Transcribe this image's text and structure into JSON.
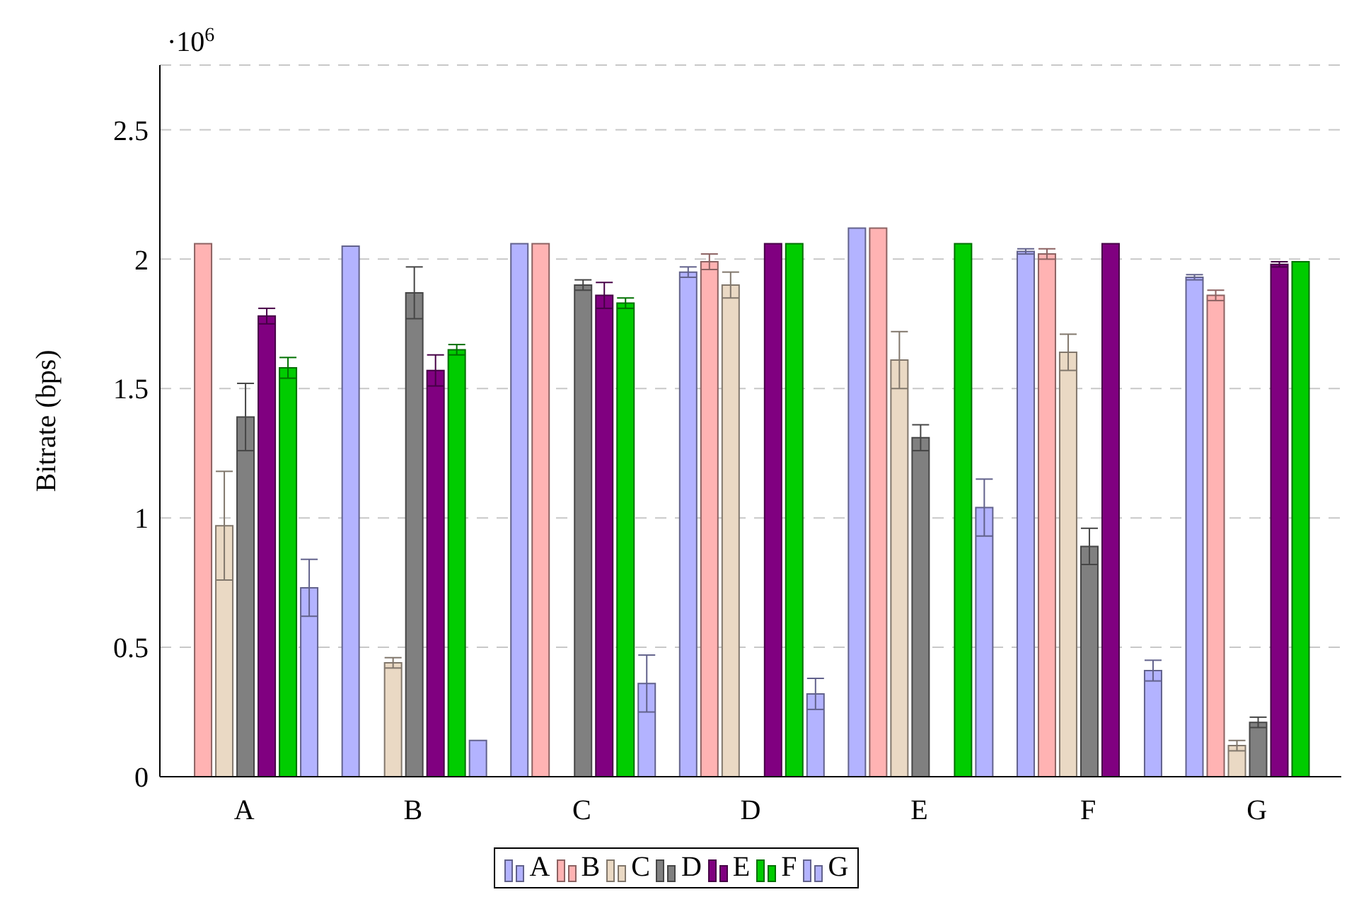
{
  "chart_data": {
    "type": "bar",
    "ylabel": "Bitrate (bps)",
    "annotations": [
      "·10$^{6}$"
    ],
    "categories": [
      "A",
      "B",
      "C",
      "D",
      "E",
      "F",
      "G"
    ],
    "ylim": [
      0,
      2.75
    ],
    "yticks": [
      0,
      0.5,
      1,
      1.5,
      2,
      2.5
    ],
    "grid": "y",
    "legend": "bottom",
    "series": [
      {
        "name": "A",
        "color": "#b3b3ff",
        "values": [
          0,
          2.05,
          2.06,
          1.95,
          2.12,
          2.03,
          1.93
        ],
        "errors": [
          null,
          null,
          null,
          0.02,
          null,
          0.01,
          0.01
        ]
      },
      {
        "name": "B",
        "color": "#ffb3b3",
        "values": [
          2.06,
          0,
          2.06,
          1.99,
          2.12,
          2.02,
          1.86
        ],
        "errors": [
          null,
          null,
          null,
          0.03,
          null,
          0.02,
          0.02
        ]
      },
      {
        "name": "C",
        "color": "#ead9c4",
        "values": [
          0.97,
          0.44,
          0,
          1.9,
          1.61,
          1.64,
          0.12
        ],
        "errors": [
          0.21,
          0.02,
          null,
          0.05,
          0.11,
          0.07,
          0.02
        ]
      },
      {
        "name": "D",
        "color": "#808080",
        "values": [
          1.39,
          1.87,
          1.9,
          0,
          1.31,
          0.89,
          0.21
        ],
        "errors": [
          0.13,
          0.1,
          0.02,
          null,
          0.05,
          0.07,
          0.02
        ]
      },
      {
        "name": "E",
        "color": "#800080",
        "values": [
          1.78,
          1.57,
          1.86,
          2.06,
          0,
          2.06,
          1.98
        ],
        "errors": [
          0.03,
          0.06,
          0.05,
          null,
          null,
          null,
          0.01
        ]
      },
      {
        "name": "F",
        "color": "#00cc00",
        "values": [
          1.58,
          1.65,
          1.83,
          2.06,
          2.06,
          0,
          1.99
        ],
        "errors": [
          0.04,
          0.02,
          0.02,
          null,
          null,
          null,
          null
        ]
      },
      {
        "name": "G",
        "color": "#b3b3ff",
        "values": [
          0.73,
          0.14,
          0.36,
          0.32,
          1.04,
          0.41,
          0
        ],
        "errors": [
          0.11,
          null,
          0.11,
          0.06,
          0.11,
          0.04,
          null
        ]
      }
    ]
  }
}
